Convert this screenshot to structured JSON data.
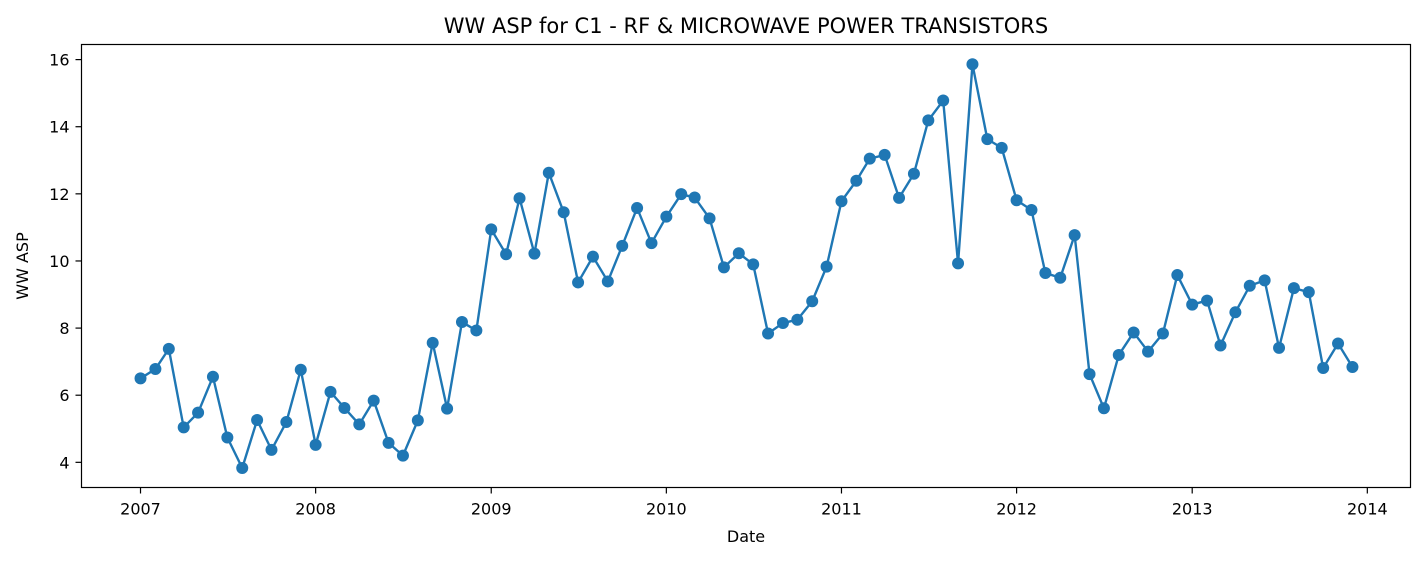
{
  "chart_data": {
    "type": "line",
    "title": "WW ASP for C1 - RF & MICROWAVE POWER TRANSISTORS",
    "xlabel": "Date",
    "ylabel": "WW ASP",
    "xlim": [
      "2006-08-31",
      "2014-04-01"
    ],
    "ylim": [
      3.25,
      16.45
    ],
    "x_ticks": [
      "2007",
      "2008",
      "2009",
      "2010",
      "2011",
      "2012",
      "2013",
      "2014"
    ],
    "y_ticks": [
      "4",
      "6",
      "8",
      "10",
      "12",
      "14",
      "16"
    ],
    "grid": false,
    "legend": "none",
    "color": "#1f77b4",
    "series": [
      {
        "x": [
          "2007-01",
          "2007-02",
          "2007-03",
          "2007-04",
          "2007-05",
          "2007-06",
          "2007-07",
          "2007-08",
          "2007-09",
          "2007-10",
          "2007-11",
          "2007-12",
          "2008-01",
          "2008-02",
          "2008-03",
          "2008-04",
          "2008-05",
          "2008-06",
          "2008-07",
          "2008-08",
          "2008-09",
          "2008-10",
          "2008-11",
          "2008-12",
          "2009-01",
          "2009-02",
          "2009-03",
          "2009-04",
          "2009-05",
          "2009-06",
          "2009-07",
          "2009-08",
          "2009-09",
          "2009-10",
          "2009-11",
          "2009-12",
          "2010-01",
          "2010-02",
          "2010-03",
          "2010-04",
          "2010-05",
          "2010-06",
          "2010-07",
          "2010-08",
          "2010-09",
          "2010-10",
          "2010-11",
          "2010-12",
          "2011-01",
          "2011-02",
          "2011-03",
          "2011-04",
          "2011-05",
          "2011-06",
          "2011-07",
          "2011-08",
          "2011-09",
          "2011-10",
          "2011-11",
          "2011-12",
          "2012-01",
          "2012-02",
          "2012-03",
          "2012-04",
          "2012-05",
          "2012-06",
          "2012-07",
          "2012-08",
          "2012-09",
          "2012-10",
          "2012-11",
          "2012-12",
          "2013-01",
          "2013-02",
          "2013-03",
          "2013-04",
          "2013-05",
          "2013-06",
          "2013-07",
          "2013-08",
          "2013-09",
          "2013-10",
          "2013-11",
          "2013-12"
        ],
        "values": [
          6.5,
          6.78,
          7.38,
          5.04,
          5.48,
          6.55,
          4.74,
          3.83,
          5.26,
          4.37,
          5.2,
          6.76,
          4.52,
          6.1,
          5.62,
          5.13,
          5.84,
          4.58,
          4.2,
          5.25,
          7.56,
          5.6,
          8.18,
          7.93,
          10.94,
          10.2,
          11.87,
          10.22,
          12.63,
          11.45,
          9.36,
          10.13,
          9.39,
          10.45,
          11.58,
          10.53,
          11.32,
          11.99,
          11.89,
          11.27,
          9.81,
          10.23,
          9.9,
          7.84,
          8.15,
          8.25,
          8.8,
          9.83,
          11.78,
          12.39,
          13.05,
          13.16,
          11.88,
          12.6,
          14.19,
          14.78,
          9.93,
          15.86,
          13.63,
          13.37,
          11.81,
          11.52,
          9.64,
          9.5,
          10.77,
          6.63,
          5.61,
          7.2,
          7.87,
          7.3,
          7.84,
          9.58,
          8.7,
          8.82,
          7.48,
          8.47,
          9.26,
          9.42,
          7.41,
          9.19,
          9.07,
          6.81,
          7.54,
          6.84
        ]
      }
    ]
  }
}
